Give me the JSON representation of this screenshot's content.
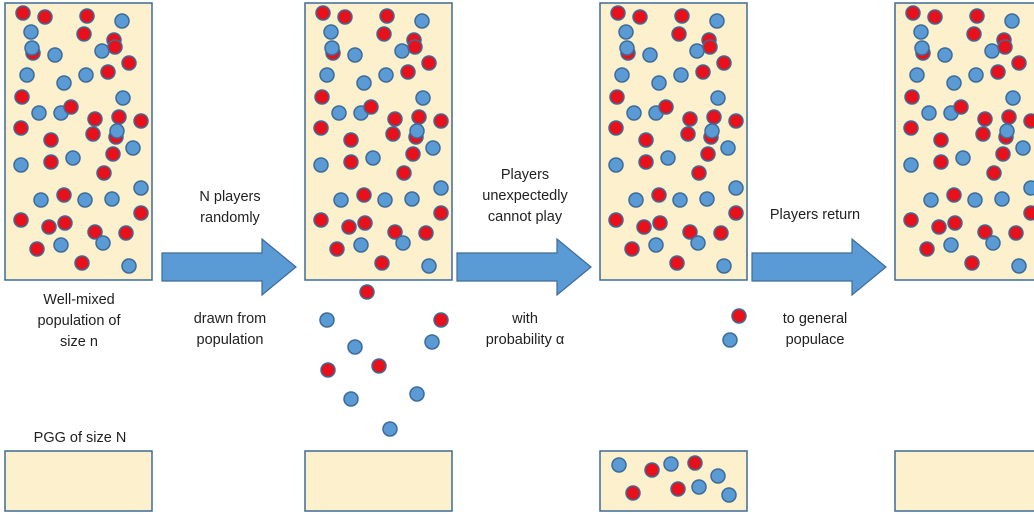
{
  "labels": {
    "population": [
      "Well-mixed",
      "population of",
      "size n"
    ],
    "pgg": "PGG of size N",
    "step1_top": [
      "N players",
      "randomly"
    ],
    "step1_bottom": [
      "drawn from",
      "population"
    ],
    "step2_top": [
      "Players",
      "unexpectedly",
      "cannot play"
    ],
    "step2_bottom": [
      "with",
      "probability α"
    ],
    "step3_top": "Players return",
    "step3_bottom": [
      "to general",
      "populace"
    ]
  },
  "colors": {
    "box_fill": "#fdf0cd",
    "box_stroke": "#3d6b98",
    "arrow_fill": "#5b9bd5",
    "dot_red": "#e8101b",
    "dot_blue": "#5b9bd5",
    "dot_stroke": "#3d6b98"
  },
  "scene": {
    "dots_in_population": 52,
    "dots_drawn_out": 10,
    "dots_in_game": 9,
    "dots_returning": 2
  }
}
